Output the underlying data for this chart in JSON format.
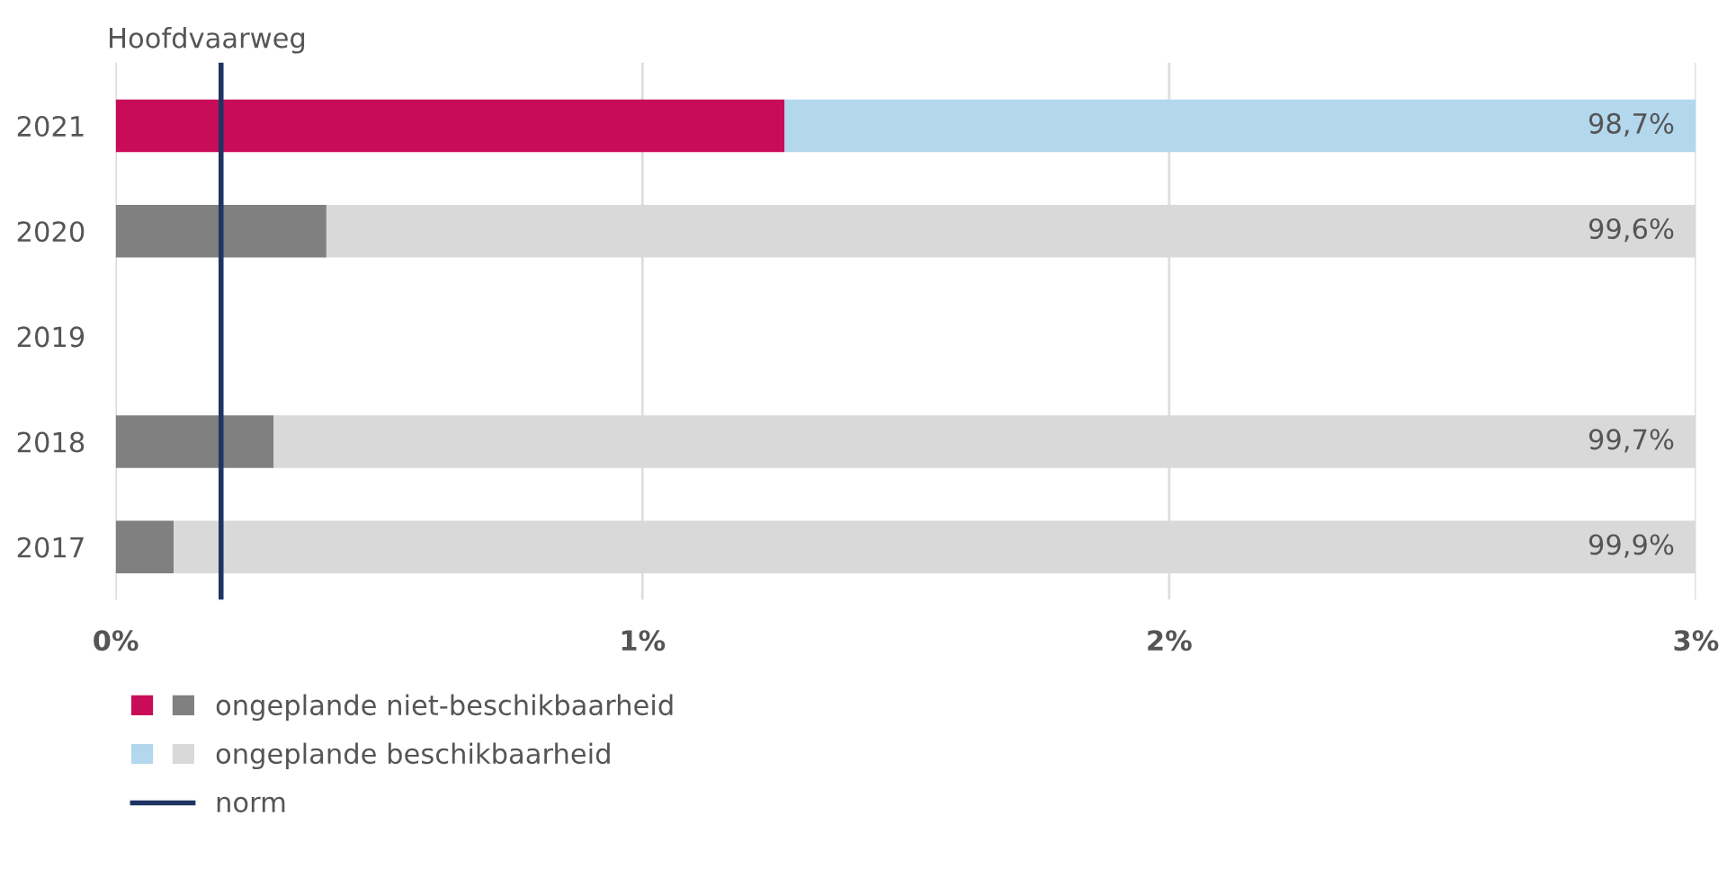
{
  "chart_data": {
    "type": "bar",
    "orientation": "horizontal",
    "stacked": true,
    "title": "Hoofdvaarweg",
    "categories": [
      "2021",
      "2020",
      "2019",
      "2018",
      "2017"
    ],
    "series": [
      {
        "name": "ongeplande niet-beschikbaarheid",
        "colors": [
          "#c90c5a",
          "#808080",
          null,
          "#808080",
          "#808080"
        ],
        "values": [
          1.27,
          0.4,
          null,
          0.3,
          0.11
        ]
      },
      {
        "name": "ongeplande beschikbaarheid",
        "colors": [
          "#b3d7ed",
          "#d9d9d9",
          null,
          "#d9d9d9",
          "#d9d9d9"
        ],
        "values": [
          1.73,
          2.6,
          null,
          2.7,
          2.89
        ]
      }
    ],
    "ref_lines": [
      {
        "axis": "x",
        "value": 0.2,
        "label": "norm",
        "color": "#1f3464",
        "line_style": "solid"
      }
    ],
    "annotations": [
      "98,7%",
      "99,6%",
      "99,7%",
      "99,9%"
    ],
    "xlim": [
      0,
      3
    ],
    "xticks": [
      {
        "value": 0,
        "label": "0%"
      },
      {
        "value": 1,
        "label": "1%"
      },
      {
        "value": 2,
        "label": "2%"
      },
      {
        "value": 3,
        "label": "3%"
      }
    ],
    "grid": "x",
    "legend": "bottom left"
  }
}
